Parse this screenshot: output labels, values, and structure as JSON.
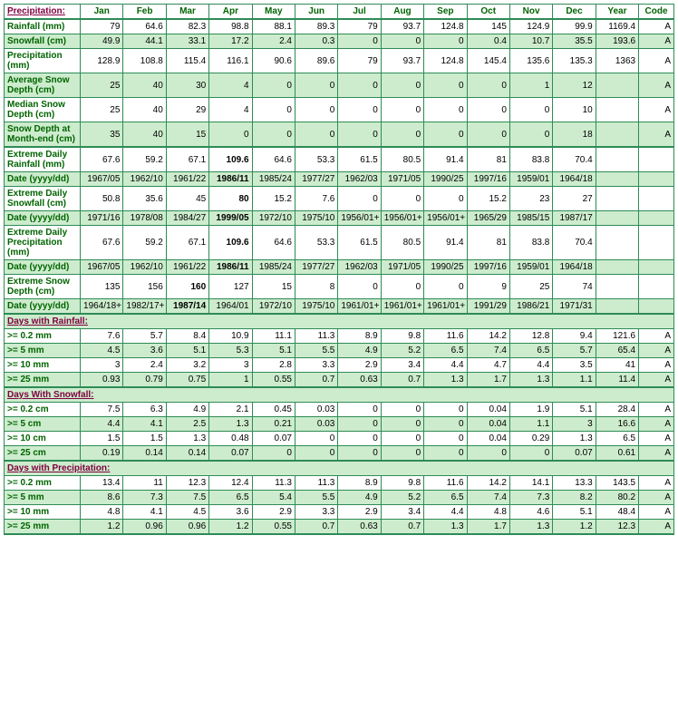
{
  "columns": [
    "Precipitation:",
    "Jan",
    "Feb",
    "Mar",
    "Apr",
    "May",
    "Jun",
    "Jul",
    "Aug",
    "Sep",
    "Oct",
    "Nov",
    "Dec",
    "Year",
    "Code"
  ],
  "rows": [
    {
      "kind": "data",
      "parity": "odd",
      "label": "Rainfall (mm)",
      "v": [
        "79",
        "64.6",
        "82.3",
        "98.8",
        "88.1",
        "89.3",
        "79",
        "93.7",
        "124.8",
        "145",
        "124.9",
        "99.9",
        "1169.4",
        "A"
      ]
    },
    {
      "kind": "data",
      "parity": "even",
      "label": "Snowfall (cm)",
      "v": [
        "49.9",
        "44.1",
        "33.1",
        "17.2",
        "2.4",
        "0.3",
        "0",
        "0",
        "0",
        "0.4",
        "10.7",
        "35.5",
        "193.6",
        "A"
      ]
    },
    {
      "kind": "data",
      "parity": "odd",
      "label": "Precipitation (mm)",
      "v": [
        "128.9",
        "108.8",
        "115.4",
        "116.1",
        "90.6",
        "89.6",
        "79",
        "93.7",
        "124.8",
        "145.4",
        "135.6",
        "135.3",
        "1363",
        "A"
      ]
    },
    {
      "kind": "data",
      "parity": "even",
      "label": "Average Snow Depth (cm)",
      "v": [
        "25",
        "40",
        "30",
        "4",
        "0",
        "0",
        "0",
        "0",
        "0",
        "0",
        "1",
        "12",
        "",
        "A"
      ]
    },
    {
      "kind": "data",
      "parity": "odd",
      "label": "Median Snow Depth (cm)",
      "v": [
        "25",
        "40",
        "29",
        "4",
        "0",
        "0",
        "0",
        "0",
        "0",
        "0",
        "0",
        "10",
        "",
        "A"
      ]
    },
    {
      "kind": "data",
      "parity": "even",
      "thick": "bottom",
      "label": "Snow Depth at Month-end (cm)",
      "v": [
        "35",
        "40",
        "15",
        "0",
        "0",
        "0",
        "0",
        "0",
        "0",
        "0",
        "0",
        "18",
        "",
        "A"
      ]
    },
    {
      "kind": "data",
      "parity": "odd",
      "label": "Extreme Daily Rainfall (mm)",
      "v": [
        "67.6",
        "59.2",
        "67.1",
        "109.6",
        "64.6",
        "53.3",
        "61.5",
        "80.5",
        "91.4",
        "81",
        "83.8",
        "70.4",
        "",
        ""
      ],
      "bold": [
        3
      ]
    },
    {
      "kind": "data",
      "parity": "even",
      "label": "Date (yyyy/dd)",
      "v": [
        "1967/05",
        "1962/10",
        "1961/22",
        "1986/11",
        "1985/24",
        "1977/27",
        "1962/03",
        "1971/05",
        "1990/25",
        "1997/16",
        "1959/01",
        "1964/18",
        "",
        ""
      ],
      "bold": [
        3
      ]
    },
    {
      "kind": "data",
      "parity": "odd",
      "label": "Extreme Daily Snowfall (cm)",
      "v": [
        "50.8",
        "35.6",
        "45",
        "80",
        "15.2",
        "7.6",
        "0",
        "0",
        "0",
        "15.2",
        "23",
        "27",
        "",
        ""
      ],
      "bold": [
        3
      ]
    },
    {
      "kind": "data",
      "parity": "even",
      "label": "Date (yyyy/dd)",
      "v": [
        "1971/16",
        "1978/08",
        "1984/27",
        "1999/05",
        "1972/10",
        "1975/10",
        "1956/01+",
        "1956/01+",
        "1956/01+",
        "1965/29",
        "1985/15",
        "1987/17",
        "",
        ""
      ],
      "bold": [
        3
      ]
    },
    {
      "kind": "data",
      "parity": "odd",
      "label": "Extreme Daily Precipitation (mm)",
      "v": [
        "67.6",
        "59.2",
        "67.1",
        "109.6",
        "64.6",
        "53.3",
        "61.5",
        "80.5",
        "91.4",
        "81",
        "83.8",
        "70.4",
        "",
        ""
      ],
      "bold": [
        3
      ]
    },
    {
      "kind": "data",
      "parity": "even",
      "label": "Date (yyyy/dd)",
      "v": [
        "1967/05",
        "1962/10",
        "1961/22",
        "1986/11",
        "1985/24",
        "1977/27",
        "1962/03",
        "1971/05",
        "1990/25",
        "1997/16",
        "1959/01",
        "1964/18",
        "",
        ""
      ],
      "bold": [
        3
      ]
    },
    {
      "kind": "data",
      "parity": "odd",
      "label": "Extreme Snow Depth (cm)",
      "v": [
        "135",
        "156",
        "160",
        "127",
        "15",
        "8",
        "0",
        "0",
        "0",
        "9",
        "25",
        "74",
        "",
        ""
      ],
      "bold": [
        2
      ]
    },
    {
      "kind": "data",
      "parity": "even",
      "thick": "bottom",
      "label": "Date (yyyy/dd)",
      "v": [
        "1964/18+",
        "1982/17+",
        "1987/14",
        "1964/01",
        "1972/10",
        "1975/10",
        "1961/01+",
        "1961/01+",
        "1961/01+",
        "1991/29",
        "1986/21",
        "1971/31",
        "",
        ""
      ],
      "bold": [
        2
      ]
    },
    {
      "kind": "section",
      "label": "Days with Rainfall:"
    },
    {
      "kind": "data",
      "parity": "odd",
      "label": ">= 0.2 mm",
      "v": [
        "7.6",
        "5.7",
        "8.4",
        "10.9",
        "11.1",
        "11.3",
        "8.9",
        "9.8",
        "11.6",
        "14.2",
        "12.8",
        "9.4",
        "121.6",
        "A"
      ]
    },
    {
      "kind": "data",
      "parity": "even",
      "label": ">= 5 mm",
      "v": [
        "4.5",
        "3.6",
        "5.1",
        "5.3",
        "5.1",
        "5.5",
        "4.9",
        "5.2",
        "6.5",
        "7.4",
        "6.5",
        "5.7",
        "65.4",
        "A"
      ]
    },
    {
      "kind": "data",
      "parity": "odd",
      "label": ">= 10 mm",
      "v": [
        "3",
        "2.4",
        "3.2",
        "3",
        "2.8",
        "3.3",
        "2.9",
        "3.4",
        "4.4",
        "4.7",
        "4.4",
        "3.5",
        "41",
        "A"
      ]
    },
    {
      "kind": "data",
      "parity": "even",
      "thick": "bottom",
      "label": ">= 25 mm",
      "v": [
        "0.93",
        "0.79",
        "0.75",
        "1",
        "0.55",
        "0.7",
        "0.63",
        "0.7",
        "1.3",
        "1.7",
        "1.3",
        "1.1",
        "11.4",
        "A"
      ]
    },
    {
      "kind": "section",
      "label": "Days With Snowfall:"
    },
    {
      "kind": "data",
      "parity": "odd",
      "label": ">= 0.2 cm",
      "v": [
        "7.5",
        "6.3",
        "4.9",
        "2.1",
        "0.45",
        "0.03",
        "0",
        "0",
        "0",
        "0.04",
        "1.9",
        "5.1",
        "28.4",
        "A"
      ]
    },
    {
      "kind": "data",
      "parity": "even",
      "label": ">= 5 cm",
      "v": [
        "4.4",
        "4.1",
        "2.5",
        "1.3",
        "0.21",
        "0.03",
        "0",
        "0",
        "0",
        "0.04",
        "1.1",
        "3",
        "16.6",
        "A"
      ]
    },
    {
      "kind": "data",
      "parity": "odd",
      "label": ">= 10 cm",
      "v": [
        "1.5",
        "1.5",
        "1.3",
        "0.48",
        "0.07",
        "0",
        "0",
        "0",
        "0",
        "0.04",
        "0.29",
        "1.3",
        "6.5",
        "A"
      ]
    },
    {
      "kind": "data",
      "parity": "even",
      "thick": "bottom",
      "label": ">= 25 cm",
      "v": [
        "0.19",
        "0.14",
        "0.14",
        "0.07",
        "0",
        "0",
        "0",
        "0",
        "0",
        "0",
        "0",
        "0.07",
        "0.61",
        "A"
      ]
    },
    {
      "kind": "section",
      "label": "Days with Precipitation:"
    },
    {
      "kind": "data",
      "parity": "odd",
      "label": ">= 0.2 mm",
      "v": [
        "13.4",
        "11",
        "12.3",
        "12.4",
        "11.3",
        "11.3",
        "8.9",
        "9.8",
        "11.6",
        "14.2",
        "14.1",
        "13.3",
        "143.5",
        "A"
      ]
    },
    {
      "kind": "data",
      "parity": "even",
      "label": ">= 5 mm",
      "v": [
        "8.6",
        "7.3",
        "7.5",
        "6.5",
        "5.4",
        "5.5",
        "4.9",
        "5.2",
        "6.5",
        "7.4",
        "7.3",
        "8.2",
        "80.2",
        "A"
      ]
    },
    {
      "kind": "data",
      "parity": "odd",
      "label": ">= 10 mm",
      "v": [
        "4.8",
        "4.1",
        "4.5",
        "3.6",
        "2.9",
        "3.3",
        "2.9",
        "3.4",
        "4.4",
        "4.8",
        "4.6",
        "5.1",
        "48.4",
        "A"
      ]
    },
    {
      "kind": "data",
      "parity": "even",
      "thick": "bottom",
      "label": ">= 25 mm",
      "v": [
        "1.2",
        "0.96",
        "0.96",
        "1.2",
        "0.55",
        "0.7",
        "0.63",
        "0.7",
        "1.3",
        "1.7",
        "1.3",
        "1.2",
        "12.3",
        "A"
      ]
    }
  ],
  "styling": {
    "border_color": "#2e8b57",
    "even_bg": "#cdeccd",
    "odd_bg": "#ffffff",
    "header_text": "#006400",
    "section_text": "#800040",
    "font_family": "Verdana, Arial, sans-serif",
    "font_size_pt": 10
  }
}
